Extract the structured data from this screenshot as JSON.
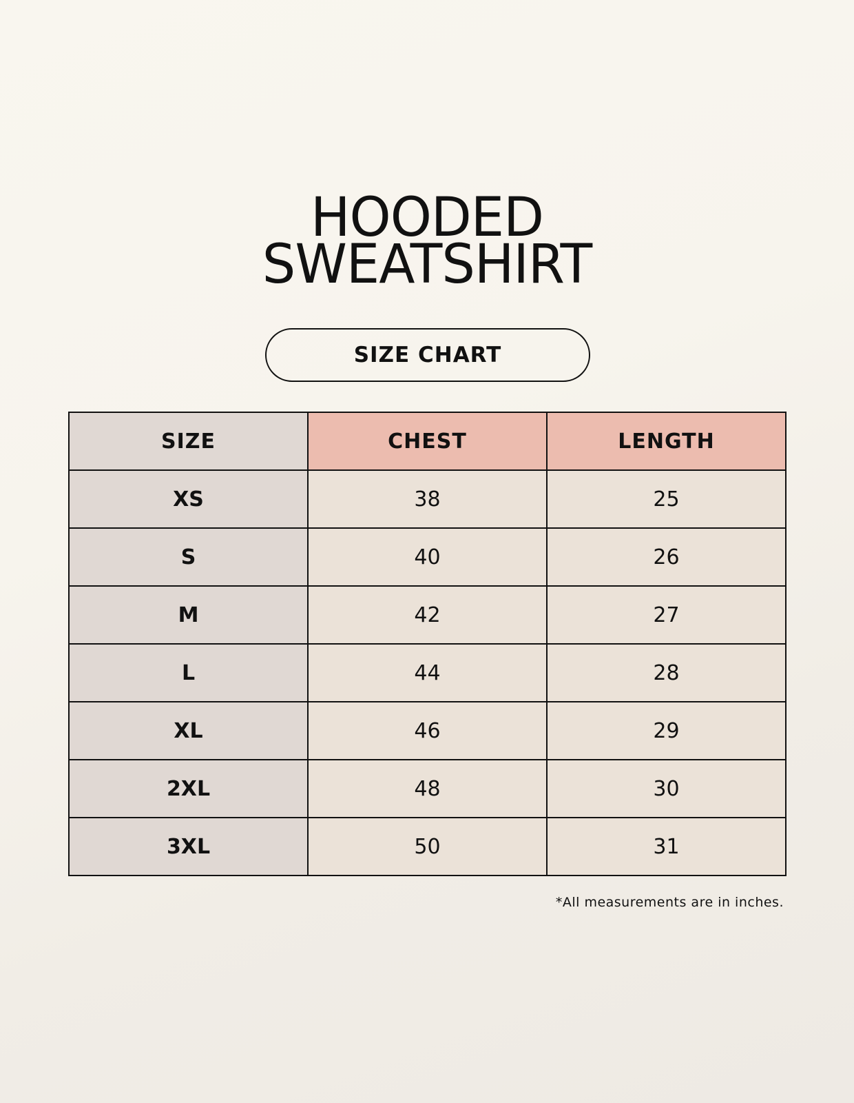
{
  "title": {
    "line1": "HOODED",
    "line2": "SWEATSHIRT"
  },
  "subtitle": "SIZE CHART",
  "table": {
    "headers": [
      "SIZE",
      "CHEST",
      "LENGTH"
    ],
    "rows": [
      [
        "XS",
        "38",
        "25"
      ],
      [
        "S",
        "40",
        "26"
      ],
      [
        "M",
        "42",
        "27"
      ],
      [
        "L",
        "44",
        "28"
      ],
      [
        "XL",
        "46",
        "29"
      ],
      [
        "2XL",
        "48",
        "30"
      ],
      [
        "3XL",
        "50",
        "31"
      ]
    ]
  },
  "footnote": "*All measurements are in inches.",
  "colors": {
    "header_accent": "#ecbcaf",
    "size_column": "#e0d8d3",
    "value_cells": "#ebe2d8",
    "background": "#f8f5ee"
  }
}
